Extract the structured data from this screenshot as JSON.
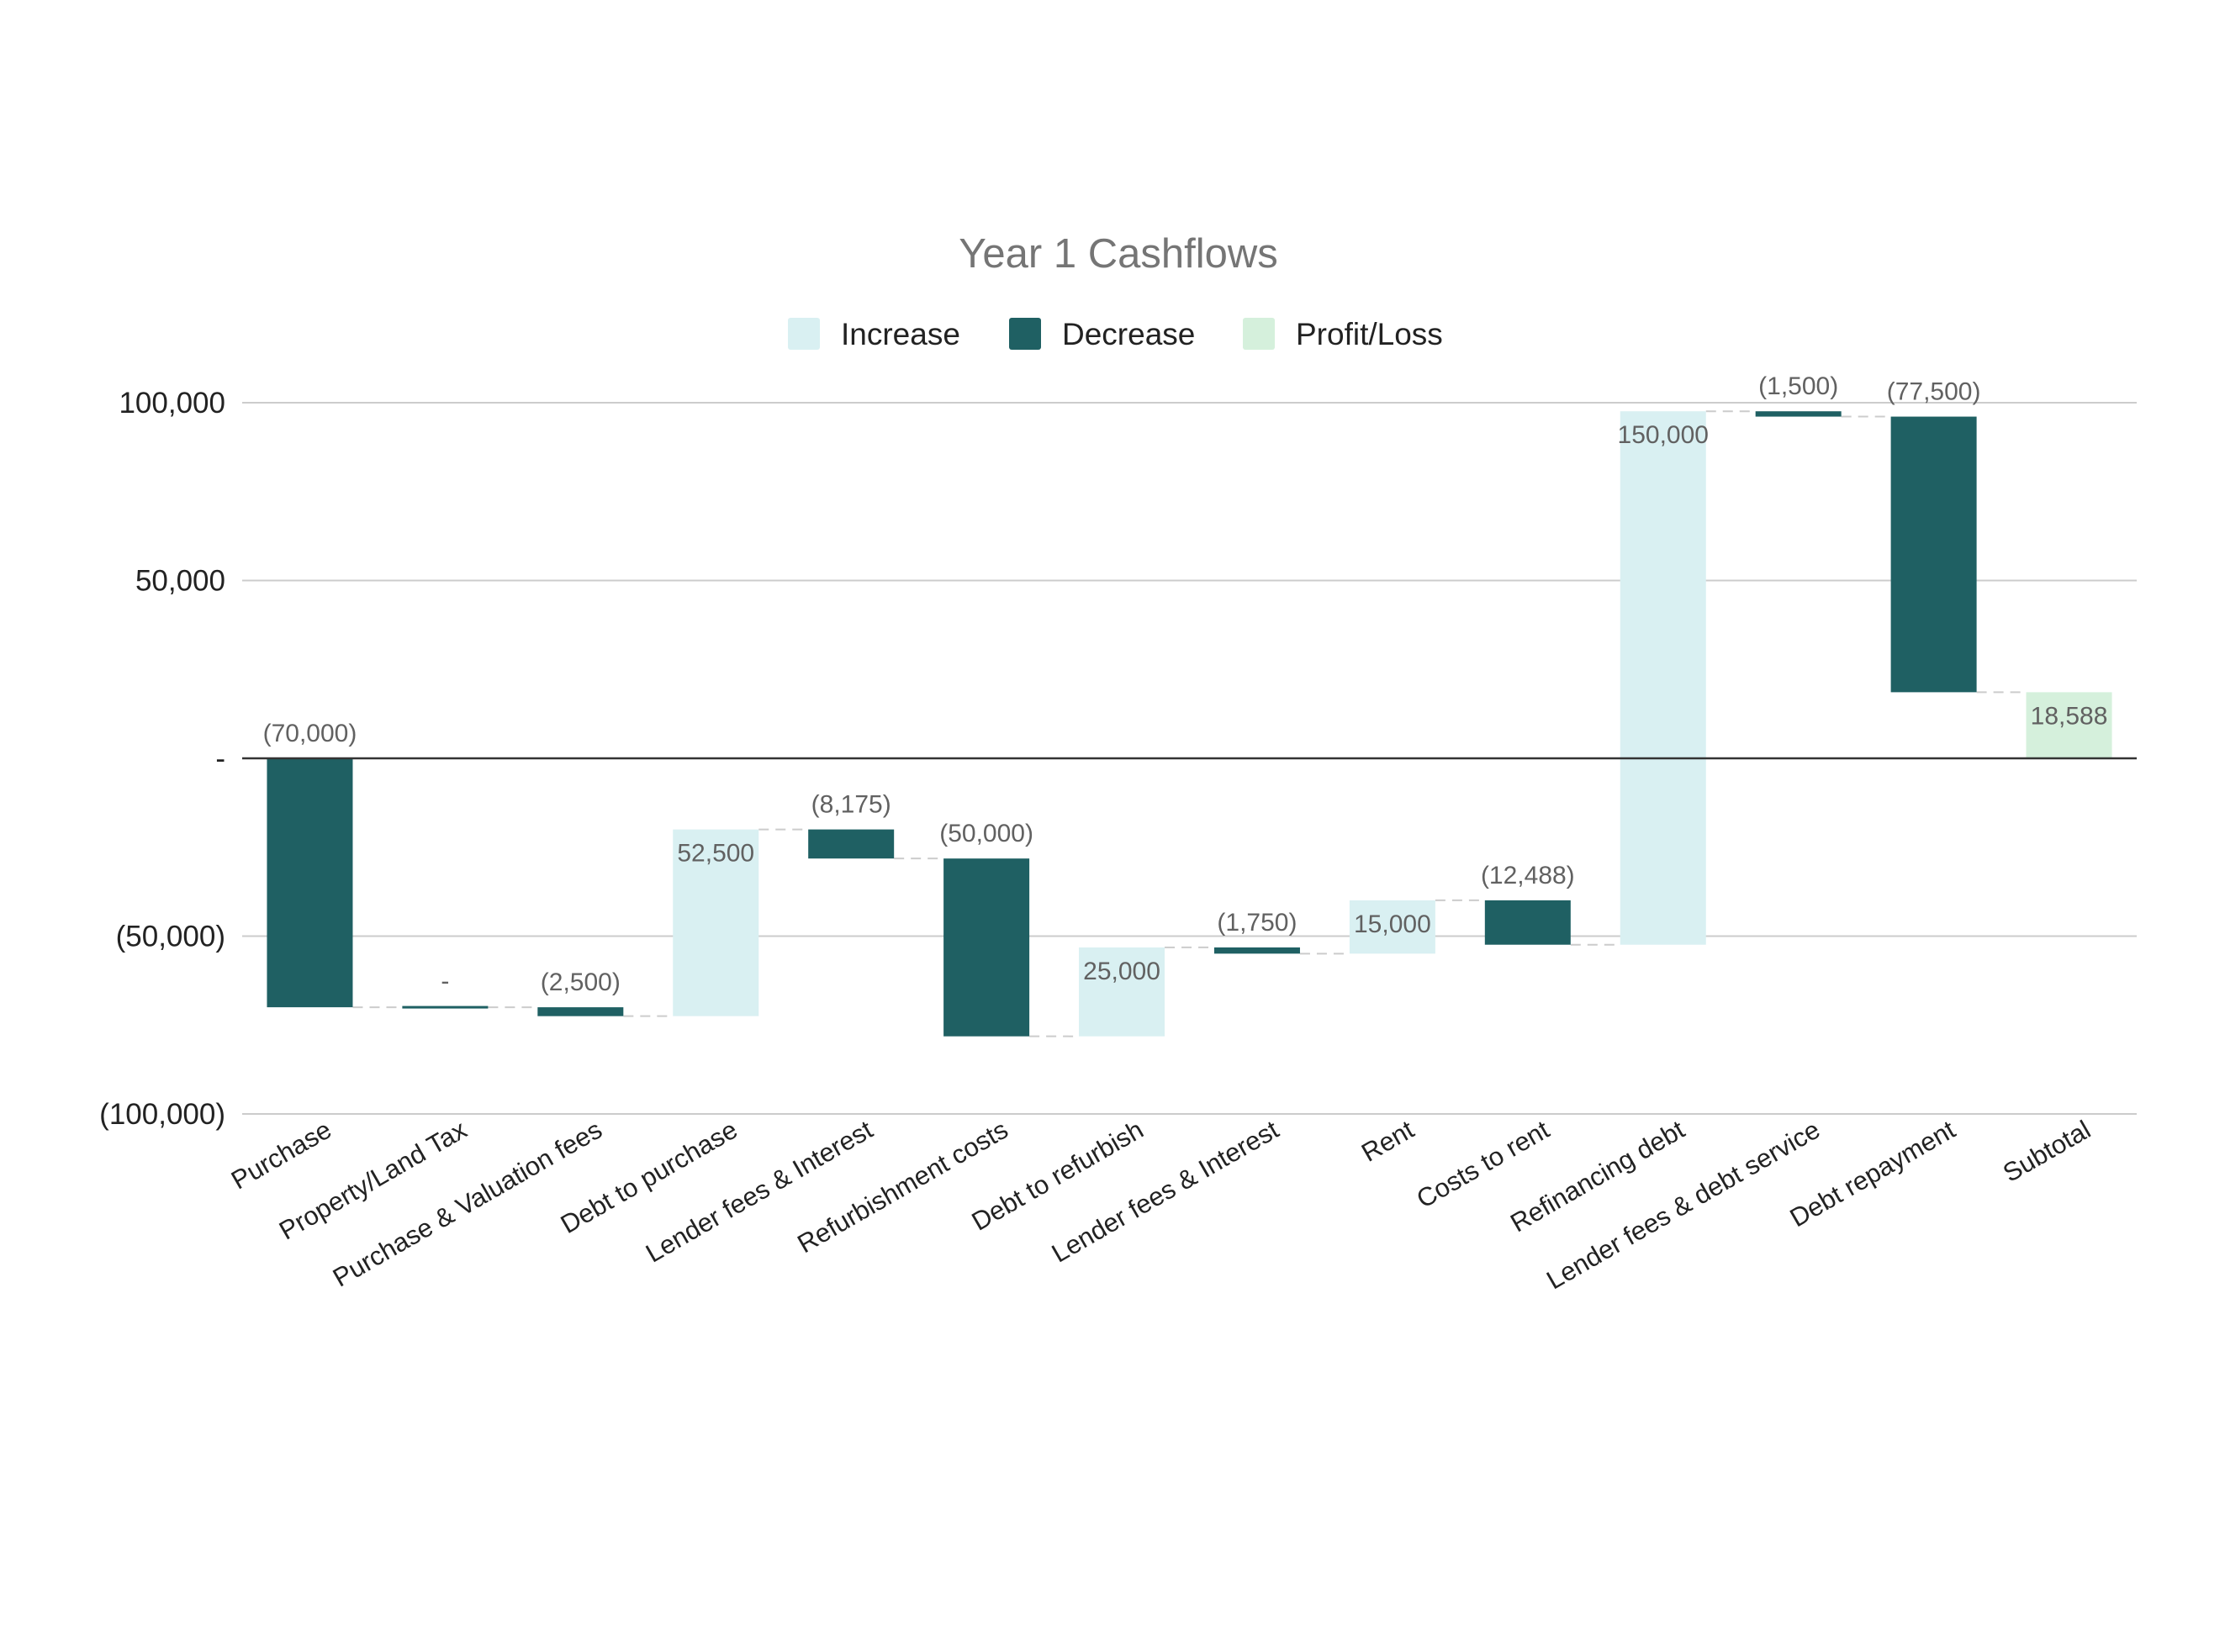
{
  "chart_data": {
    "type": "waterfall",
    "title": "Year 1 Cashflows",
    "legend": {
      "placement": "top-center",
      "items": [
        {
          "label": "Increase",
          "color": "#d9f0f2"
        },
        {
          "label": "Decrease",
          "color": "#1f6063"
        },
        {
          "label": "Profit/Loss",
          "color": "#d5f0dc"
        }
      ]
    },
    "ylim": [
      -100000,
      100000
    ],
    "yticks": [
      {
        "value": 100000,
        "label": "100,000"
      },
      {
        "value": 50000,
        "label": "50,000"
      },
      {
        "value": 0,
        "label": "-"
      },
      {
        "value": -50000,
        "label": "(50,000)"
      },
      {
        "value": -100000,
        "label": "(100,000)"
      }
    ],
    "grid": true,
    "categories": [
      "Purchase",
      "Property/Land Tax",
      "Purchase & Valuation fees",
      "Debt to purchase",
      "Lender fees & Interest",
      "Refurbishment costs",
      "Debt to refurbish",
      "Lender fees & Interest",
      "Rent",
      "Costs to rent",
      "Refinancing debt",
      "Lender fees & debt service",
      "Debt repayment",
      "Subtotal"
    ],
    "values": [
      -70000,
      0,
      -2500,
      52500,
      -8175,
      -50000,
      25000,
      -1750,
      15000,
      -12488,
      150000,
      -1500,
      -77500,
      18588
    ],
    "kinds": [
      "decrease",
      "decrease",
      "decrease",
      "increase",
      "decrease",
      "decrease",
      "increase",
      "decrease",
      "increase",
      "decrease",
      "increase",
      "decrease",
      "decrease",
      "total"
    ],
    "data_labels": [
      "(70,000)",
      "-",
      "(2,500)",
      "52,500",
      "(8,175)",
      "(50,000)",
      "25,000",
      "(1,750)",
      "15,000",
      "(12,488)",
      "150,000",
      "(1,500)",
      "(77,500)",
      "18,588"
    ],
    "colors": {
      "increase": "#d9f0f2",
      "decrease": "#1f6063",
      "total": "#d5f0dc",
      "grid": "#cccccc",
      "zero_line": "#333333",
      "connector": "#cccccc"
    }
  }
}
